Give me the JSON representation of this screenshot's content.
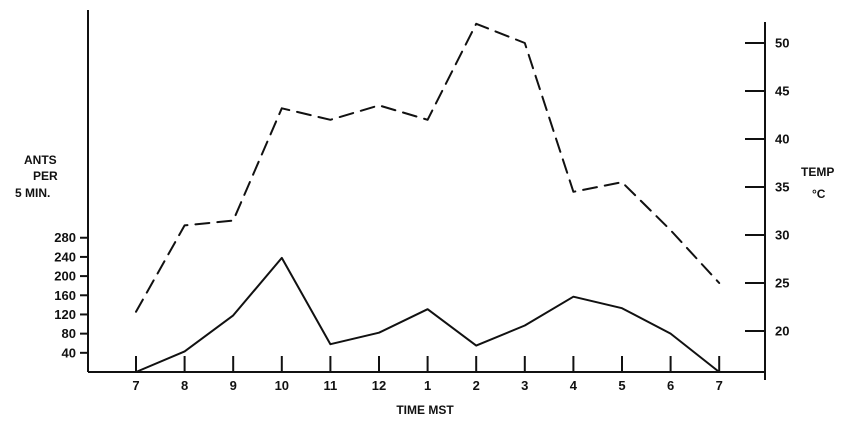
{
  "chart_data": {
    "type": "line",
    "title": "",
    "xlabel": "TIME MST",
    "ylabel_left": [
      "ANTS",
      "PER",
      "5 MIN."
    ],
    "ylabel_right": [
      "TEMP",
      "°C"
    ],
    "categories": [
      "7",
      "8",
      "9",
      "10",
      "11",
      "12",
      "1",
      "2",
      "3",
      "4",
      "5",
      "6",
      "7"
    ],
    "left_axis": {
      "ticks": [
        40,
        80,
        120,
        160,
        200,
        240,
        280
      ]
    },
    "right_axis": {
      "ticks": [
        20,
        25,
        30,
        35,
        40,
        45,
        50
      ]
    },
    "series": [
      {
        "axis": "left",
        "style": "solid",
        "color": "#111111",
        "values": [
          0,
          43,
          118,
          238,
          58,
          82,
          131,
          55,
          97,
          157,
          133,
          80,
          0
        ]
      },
      {
        "axis": "right",
        "style": "dashed",
        "color": "#111111",
        "values": [
          22,
          31,
          31.5,
          43.2,
          42,
          43.5,
          42,
          52,
          50,
          34.5,
          35.5,
          30.5,
          25
        ]
      }
    ],
    "grid": false,
    "legend": "none"
  }
}
